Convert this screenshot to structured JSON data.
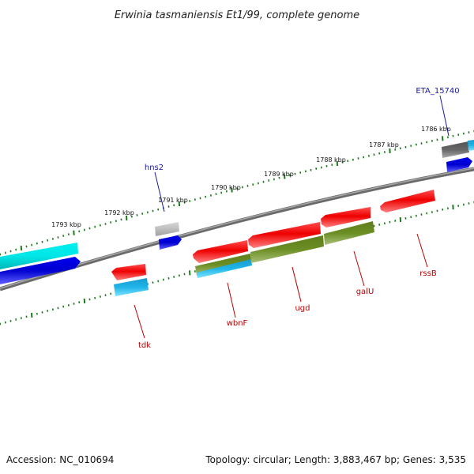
{
  "title": "Erwinia tasmaniensis Et1/99, complete genome",
  "footer": {
    "accession": "Accession: NC_010694",
    "summary": "Topology: circular; Length: 3,883,467 bp; Genes: 3,535"
  },
  "ticks": [
    "1786 kbp",
    "1787 kbp",
    "1788 kbp",
    "1789 kbp",
    "1790 kbp",
    "1791 kbp",
    "1792 kbp",
    "1793 kbp"
  ],
  "gene_labels": {
    "eta": "ETA_15740",
    "hns2": "hns2",
    "tdk": "tdk",
    "wbnF": "wbnF",
    "ugd": "ugd",
    "galU": "galU",
    "rssB": "rssB"
  },
  "colors": {
    "backbone": "#7a7a7a",
    "tick": "#1e7a1e",
    "cds_red": "#ee0000",
    "cyan": "#00e6e6",
    "blue": "#0000dd",
    "olive": "#6b8e23",
    "sky": "#1fb5e8",
    "gray": "#bdbdbd",
    "darkgray": "#666666",
    "label_blue": "#1a1aa0",
    "label_red": "#b80000"
  }
}
